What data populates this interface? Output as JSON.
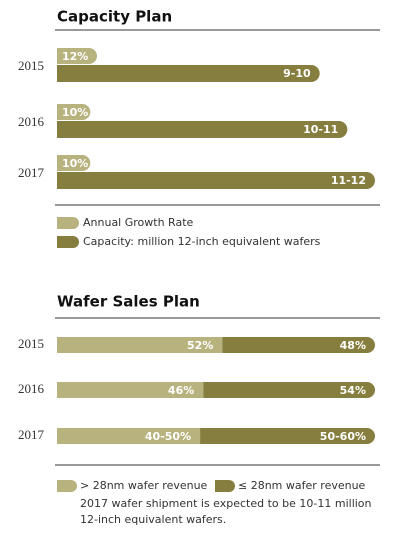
{
  "chart_data": [
    {
      "type": "bar",
      "title": "Capacity Plan",
      "categories": [
        "2015",
        "2016",
        "2017"
      ],
      "series": [
        {
          "name": "Annual Growth Rate",
          "color": "#b8b27e",
          "values": [
            12,
            10,
            10
          ],
          "value_labels": [
            "12%",
            "10%",
            "10%"
          ]
        },
        {
          "name": "Capacity: million 12-inch equivalent wafers",
          "color": "#867e3e",
          "values": [
            9.5,
            10.5,
            11.5
          ],
          "value_labels": [
            "9-10",
            "10-11",
            "11-12"
          ]
        }
      ]
    },
    {
      "type": "stacked_bar",
      "title": "Wafer Sales Plan",
      "categories": [
        "2015",
        "2016",
        "2017"
      ],
      "series": [
        {
          "name": "> 28nm wafer revenue",
          "color": "#b8b27e",
          "values": [
            52,
            46,
            45
          ],
          "value_labels": [
            "52%",
            "46%",
            "40-50%"
          ]
        },
        {
          "name": "≤ 28nm wafer revenue",
          "color": "#867e3e",
          "values": [
            48,
            54,
            55
          ],
          "value_labels": [
            "48%",
            "54%",
            "50-60%"
          ]
        }
      ],
      "note": "2017 wafer shipment is expected to be 10-11 million 12-inch equivalent wafers."
    }
  ]
}
